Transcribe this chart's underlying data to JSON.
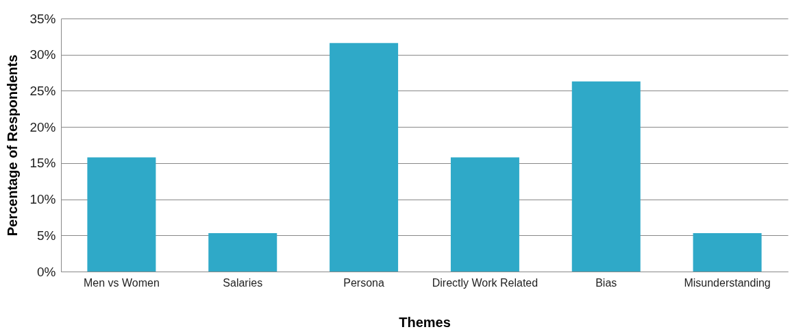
{
  "chart_data": {
    "type": "bar",
    "xlabel": "Themes",
    "ylabel": "Percentage of Respondents",
    "categories": [
      "Men vs Women",
      "Salaries",
      "Persona",
      "Directly Work Related",
      "Bias",
      "Misunderstanding"
    ],
    "values": [
      15.8,
      5.3,
      31.6,
      15.8,
      26.3,
      5.3
    ],
    "color": "#2fa9c8",
    "ylim": [
      0,
      35
    ],
    "yticks": [
      {
        "value": 0,
        "label": "0%"
      },
      {
        "value": 5,
        "label": "5%"
      },
      {
        "value": 10,
        "label": "10%"
      },
      {
        "value": 15,
        "label": "15%"
      },
      {
        "value": 20,
        "label": "20%"
      },
      {
        "value": 25,
        "label": "25%"
      },
      {
        "value": 30,
        "label": "30%"
      },
      {
        "value": 35,
        "label": "35%"
      }
    ],
    "grid": "y"
  }
}
